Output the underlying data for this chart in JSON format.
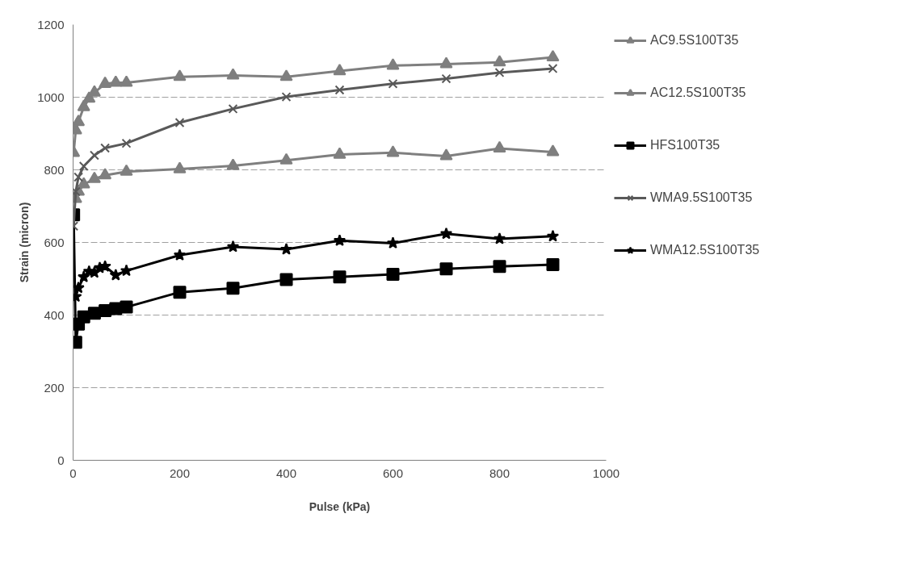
{
  "chart_data": {
    "type": "line",
    "xlabel": "Pulse (kPa)",
    "ylabel": "Strain (micron)",
    "xlim": [
      0,
      1000
    ],
    "xticks": [
      0,
      200,
      400,
      600,
      800,
      1000
    ],
    "ylim": [
      0,
      1200
    ],
    "yticks": [
      0,
      200,
      400,
      600,
      800,
      1000,
      1200
    ],
    "grid": "y",
    "legend": "right",
    "series": [
      {
        "name": "AC9.5S100T35",
        "color": "#7f7f7f",
        "marker": "triangle",
        "x": [
          1,
          5,
          10,
          20,
          30,
          40,
          60,
          80,
          100,
          200,
          300,
          400,
          500,
          600,
          700,
          800,
          900
        ],
        "values": [
          847,
          909,
          932,
          973,
          996,
          1013,
          1037,
          1040,
          1040,
          1056,
          1060,
          1056,
          1072,
          1087,
          1091,
          1096,
          1110
        ]
      },
      {
        "name": "AC12.5S100T35",
        "color": "#7f7f7f",
        "marker": "triangle",
        "x": [
          5,
          10,
          20,
          40,
          60,
          100,
          200,
          300,
          400,
          500,
          600,
          700,
          800,
          900
        ],
        "values": [
          720,
          740,
          760,
          775,
          785,
          795,
          802,
          811,
          826,
          842,
          847,
          838,
          859,
          849
        ]
      },
      {
        "name": "HFS100T35",
        "color": "#000000",
        "marker": "square",
        "x": [
          1,
          5,
          10,
          20,
          40,
          60,
          80,
          100,
          200,
          300,
          400,
          500,
          600,
          700,
          800,
          900
        ],
        "values": [
          676,
          325,
          375,
          395,
          405,
          412,
          418,
          422,
          463,
          474,
          498,
          505,
          512,
          527,
          534,
          539
        ]
      },
      {
        "name": "WMA9.5S100T35",
        "color": "#595959",
        "marker": "cross",
        "x": [
          1,
          5,
          10,
          20,
          40,
          60,
          100,
          200,
          300,
          400,
          500,
          600,
          700,
          800,
          900
        ],
        "values": [
          645,
          740,
          780,
          810,
          840,
          860,
          873,
          930,
          968,
          1001,
          1020,
          1037,
          1051,
          1068,
          1079
        ]
      },
      {
        "name": "WMA12.5S100T35",
        "color": "#000000",
        "marker": "star",
        "x": [
          5,
          10,
          20,
          30,
          40,
          50,
          60,
          80,
          100,
          200,
          300,
          400,
          500,
          600,
          700,
          800,
          900
        ],
        "values": [
          451,
          475,
          505,
          520,
          517,
          530,
          534,
          510,
          522,
          565,
          588,
          581,
          605,
          598,
          624,
          610,
          617
        ]
      }
    ]
  }
}
